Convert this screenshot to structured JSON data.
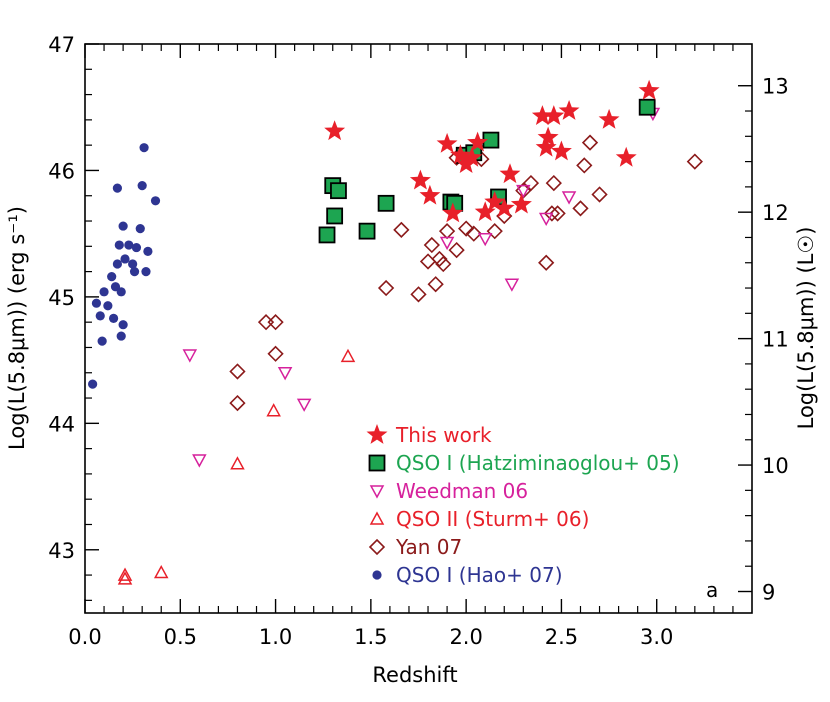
{
  "chart_data": {
    "type": "scatter",
    "title": "",
    "xlabel": "Redshift",
    "ylabel": "Log(L(5.8μm)) (erg s⁻¹)",
    "ylabel_right": "Log(L(5.8μm)) (L☉)",
    "panel_label": "a",
    "xlim": [
      0.0,
      3.5
    ],
    "ylim": [
      42.5,
      47.0
    ],
    "ylim_right": [
      9.0,
      13.0
    ],
    "x_ticks": [
      "0.0",
      "0.5",
      "1.0",
      "1.5",
      "2.0",
      "2.5",
      "3.0"
    ],
    "y_ticks": [
      "43",
      "44",
      "45",
      "46",
      "47"
    ],
    "y_ticks_right": [
      "9",
      "10",
      "11",
      "12",
      "13"
    ],
    "legend_position": "bottom-right",
    "series": [
      {
        "name": "This work",
        "marker": "star",
        "color": "#e8202a",
        "points": [
          [
            1.31,
            46.31
          ],
          [
            1.76,
            45.92
          ],
          [
            1.81,
            45.8
          ],
          [
            1.9,
            46.21
          ],
          [
            1.93,
            45.66
          ],
          [
            1.97,
            46.12
          ],
          [
            2.0,
            46.05
          ],
          [
            2.03,
            46.1
          ],
          [
            2.06,
            46.22
          ],
          [
            2.1,
            45.67
          ],
          [
            2.15,
            45.75
          ],
          [
            2.2,
            45.7
          ],
          [
            2.23,
            45.97
          ],
          [
            2.29,
            45.73
          ],
          [
            2.4,
            46.43
          ],
          [
            2.42,
            46.18
          ],
          [
            2.43,
            46.26
          ],
          [
            2.46,
            46.43
          ],
          [
            2.5,
            46.15
          ],
          [
            2.54,
            46.47
          ],
          [
            2.75,
            46.4
          ],
          [
            2.84,
            46.1
          ],
          [
            2.96,
            46.63
          ]
        ]
      },
      {
        "name": "QSO I (Hatziminaoglou+ 05)",
        "marker": "square",
        "color": "#1da551",
        "points": [
          [
            1.27,
            45.49
          ],
          [
            1.3,
            45.88
          ],
          [
            1.31,
            45.64
          ],
          [
            1.33,
            45.84
          ],
          [
            1.48,
            45.52
          ],
          [
            1.58,
            45.74
          ],
          [
            1.92,
            45.75
          ],
          [
            1.94,
            45.74
          ],
          [
            1.99,
            46.12
          ],
          [
            2.04,
            46.14
          ],
          [
            2.13,
            46.24
          ],
          [
            2.17,
            45.79
          ],
          [
            2.95,
            46.5
          ]
        ]
      },
      {
        "name": "Weedman 06",
        "marker": "triangle-down",
        "color": "#d6219c",
        "points": [
          [
            0.55,
            44.54
          ],
          [
            0.6,
            43.71
          ],
          [
            1.05,
            44.4
          ],
          [
            1.15,
            44.15
          ],
          [
            1.9,
            45.43
          ],
          [
            2.1,
            45.46
          ],
          [
            2.24,
            45.1
          ],
          [
            2.3,
            45.84
          ],
          [
            2.42,
            45.62
          ],
          [
            2.54,
            45.79
          ],
          [
            2.98,
            46.45
          ]
        ]
      },
      {
        "name": "QSO II (Sturm+ 06)",
        "marker": "triangle-up",
        "color": "#e8202a",
        "points": [
          [
            0.21,
            42.8
          ],
          [
            0.21,
            42.77
          ],
          [
            0.4,
            42.82
          ],
          [
            0.8,
            43.68
          ],
          [
            0.99,
            44.1
          ],
          [
            1.38,
            44.53
          ]
        ]
      },
      {
        "name": "Yan 07",
        "marker": "diamond",
        "color": "#8b1a1a",
        "points": [
          [
            0.8,
            44.41
          ],
          [
            0.8,
            44.16
          ],
          [
            0.95,
            44.8
          ],
          [
            1.0,
            44.8
          ],
          [
            1.0,
            44.55
          ],
          [
            1.58,
            45.07
          ],
          [
            1.66,
            45.53
          ],
          [
            1.75,
            45.02
          ],
          [
            1.8,
            45.28
          ],
          [
            1.82,
            45.41
          ],
          [
            1.84,
            45.1
          ],
          [
            1.86,
            45.3
          ],
          [
            1.88,
            45.26
          ],
          [
            1.9,
            45.52
          ],
          [
            1.95,
            45.37
          ],
          [
            1.95,
            46.1
          ],
          [
            2.0,
            45.54
          ],
          [
            2.04,
            45.5
          ],
          [
            2.08,
            46.09
          ],
          [
            2.15,
            45.52
          ],
          [
            2.2,
            45.64
          ],
          [
            2.3,
            45.84
          ],
          [
            2.34,
            45.9
          ],
          [
            2.42,
            45.27
          ],
          [
            2.45,
            45.66
          ],
          [
            2.46,
            45.9
          ],
          [
            2.48,
            45.66
          ],
          [
            2.6,
            45.7
          ],
          [
            2.62,
            46.04
          ],
          [
            2.65,
            46.22
          ],
          [
            2.7,
            45.81
          ],
          [
            3.2,
            46.07
          ]
        ]
      },
      {
        "name": "QSO I (Hao+ 07)",
        "marker": "circle",
        "color": "#2e3592",
        "points": [
          [
            0.04,
            44.31
          ],
          [
            0.06,
            44.95
          ],
          [
            0.08,
            44.85
          ],
          [
            0.09,
            44.65
          ],
          [
            0.1,
            45.04
          ],
          [
            0.12,
            44.93
          ],
          [
            0.14,
            45.16
          ],
          [
            0.15,
            44.83
          ],
          [
            0.16,
            45.08
          ],
          [
            0.17,
            45.86
          ],
          [
            0.17,
            45.26
          ],
          [
            0.18,
            45.41
          ],
          [
            0.19,
            45.04
          ],
          [
            0.19,
            44.69
          ],
          [
            0.2,
            45.56
          ],
          [
            0.2,
            44.78
          ],
          [
            0.21,
            45.3
          ],
          [
            0.23,
            45.41
          ],
          [
            0.25,
            45.26
          ],
          [
            0.26,
            45.2
          ],
          [
            0.27,
            45.39
          ],
          [
            0.29,
            45.54
          ],
          [
            0.3,
            45.88
          ],
          [
            0.31,
            46.18
          ],
          [
            0.32,
            45.2
          ],
          [
            0.33,
            45.36
          ],
          [
            0.37,
            45.76
          ]
        ]
      }
    ]
  }
}
